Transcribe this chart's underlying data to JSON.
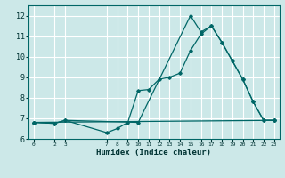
{
  "xlabel": "Humidex (Indice chaleur)",
  "bg_color": "#cce8e8",
  "grid_color": "#ffffff",
  "line_color": "#006666",
  "xlim": [
    -0.5,
    23.5
  ],
  "ylim": [
    6.0,
    12.5
  ],
  "xticks": [
    0,
    2,
    3,
    7,
    8,
    9,
    10,
    11,
    12,
    13,
    14,
    15,
    16,
    17,
    18,
    19,
    20,
    21,
    22,
    23
  ],
  "yticks": [
    6,
    7,
    8,
    9,
    10,
    11,
    12
  ],
  "series": [
    {
      "x": [
        0,
        2,
        3,
        7,
        8,
        9,
        10,
        11,
        12,
        13,
        14,
        15,
        16,
        17,
        18,
        19,
        20,
        21,
        22,
        23
      ],
      "y": [
        6.8,
        6.75,
        6.9,
        6.3,
        6.5,
        6.8,
        8.35,
        8.4,
        8.9,
        9.0,
        9.2,
        10.3,
        11.1,
        11.5,
        10.7,
        9.8,
        8.9,
        7.8,
        6.9,
        6.9
      ]
    },
    {
      "x": [
        0,
        2,
        3,
        10,
        15,
        16,
        17,
        18,
        19,
        20,
        21,
        22,
        23
      ],
      "y": [
        6.8,
        6.75,
        6.9,
        6.8,
        12.0,
        11.2,
        11.5,
        10.7,
        9.8,
        8.9,
        7.8,
        6.9,
        6.9
      ]
    },
    {
      "x": [
        0,
        23
      ],
      "y": [
        6.8,
        6.9
      ]
    }
  ]
}
